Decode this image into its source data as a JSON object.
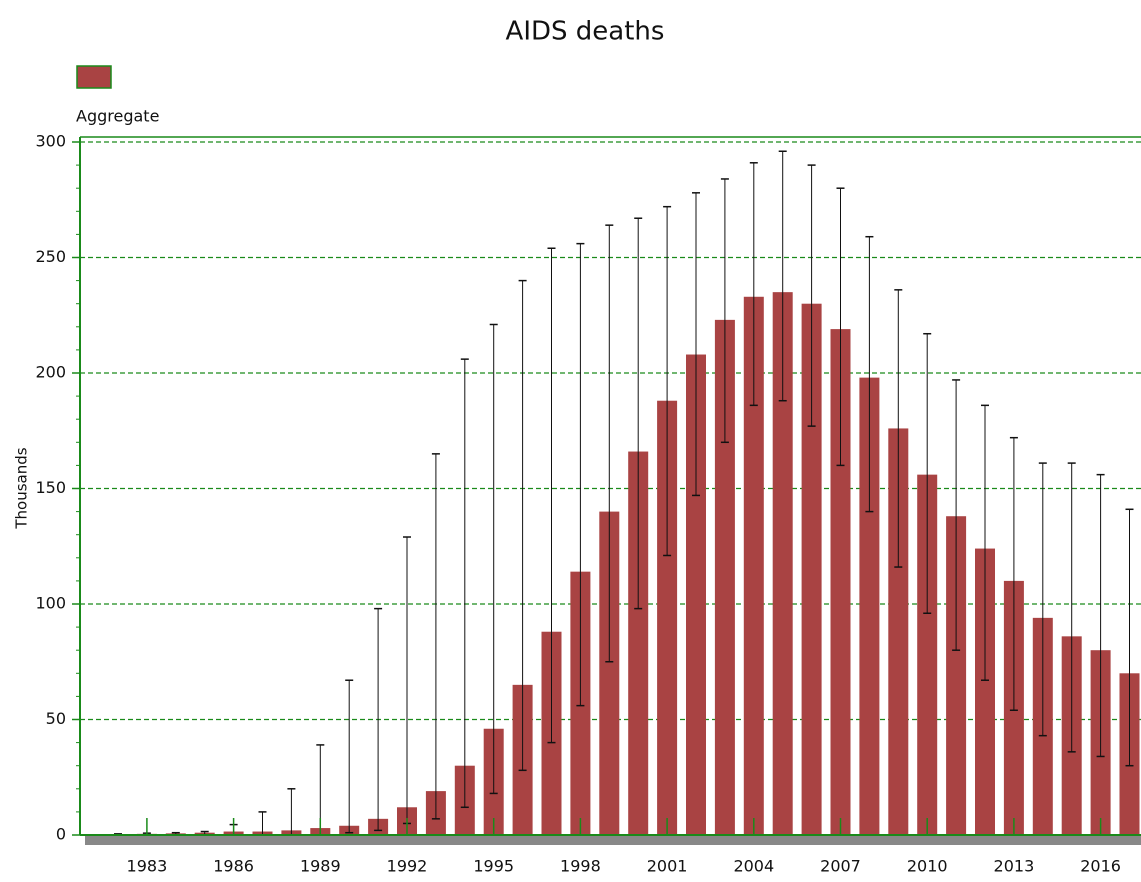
{
  "chart_data": {
    "type": "bar",
    "title": "AIDS deaths",
    "ylabel": "Thousands",
    "categories": [
      null,
      "1983",
      null,
      null,
      "1986",
      null,
      null,
      "1989",
      null,
      null,
      "1992",
      null,
      null,
      "1995",
      null,
      null,
      "1998",
      null,
      null,
      "2001",
      null,
      null,
      "2004",
      null,
      null,
      "2007",
      null,
      null,
      "2010",
      null,
      null,
      "2013",
      null,
      null,
      "2016",
      null
    ],
    "series": [
      {
        "name": "Aggregate",
        "color": "#a94343",
        "values": [
          0.3,
          0.5,
          0.7,
          1,
          1.5,
          1.5,
          2,
          3,
          4,
          7,
          12,
          19,
          30,
          46,
          65,
          88,
          114,
          140,
          166,
          188,
          208,
          223,
          233,
          235,
          230,
          219,
          198,
          176,
          156,
          138,
          124,
          110,
          94,
          86,
          80,
          70
        ],
        "lower": [
          0,
          0,
          0,
          0,
          0,
          0,
          0,
          0,
          1,
          2,
          5,
          7,
          12,
          18,
          28,
          40,
          56,
          75,
          98,
          121,
          147,
          170,
          186,
          188,
          177,
          160,
          140,
          116,
          96,
          80,
          67,
          54,
          43,
          36,
          34,
          30
        ],
        "upper": [
          0.5,
          0.8,
          1,
          1.5,
          4.5,
          10,
          20,
          39,
          67,
          98,
          129,
          165,
          206,
          221,
          240,
          254,
          256,
          264,
          267,
          272,
          278,
          284,
          291,
          296,
          290,
          280,
          259,
          236,
          217,
          197,
          186,
          172,
          161,
          161,
          156,
          141
        ]
      }
    ],
    "ylim": [
      0,
      300
    ],
    "yticks": [
      0,
      50,
      100,
      150,
      200,
      250,
      300
    ],
    "grid": true,
    "grid_color": "#1a8a1a"
  }
}
